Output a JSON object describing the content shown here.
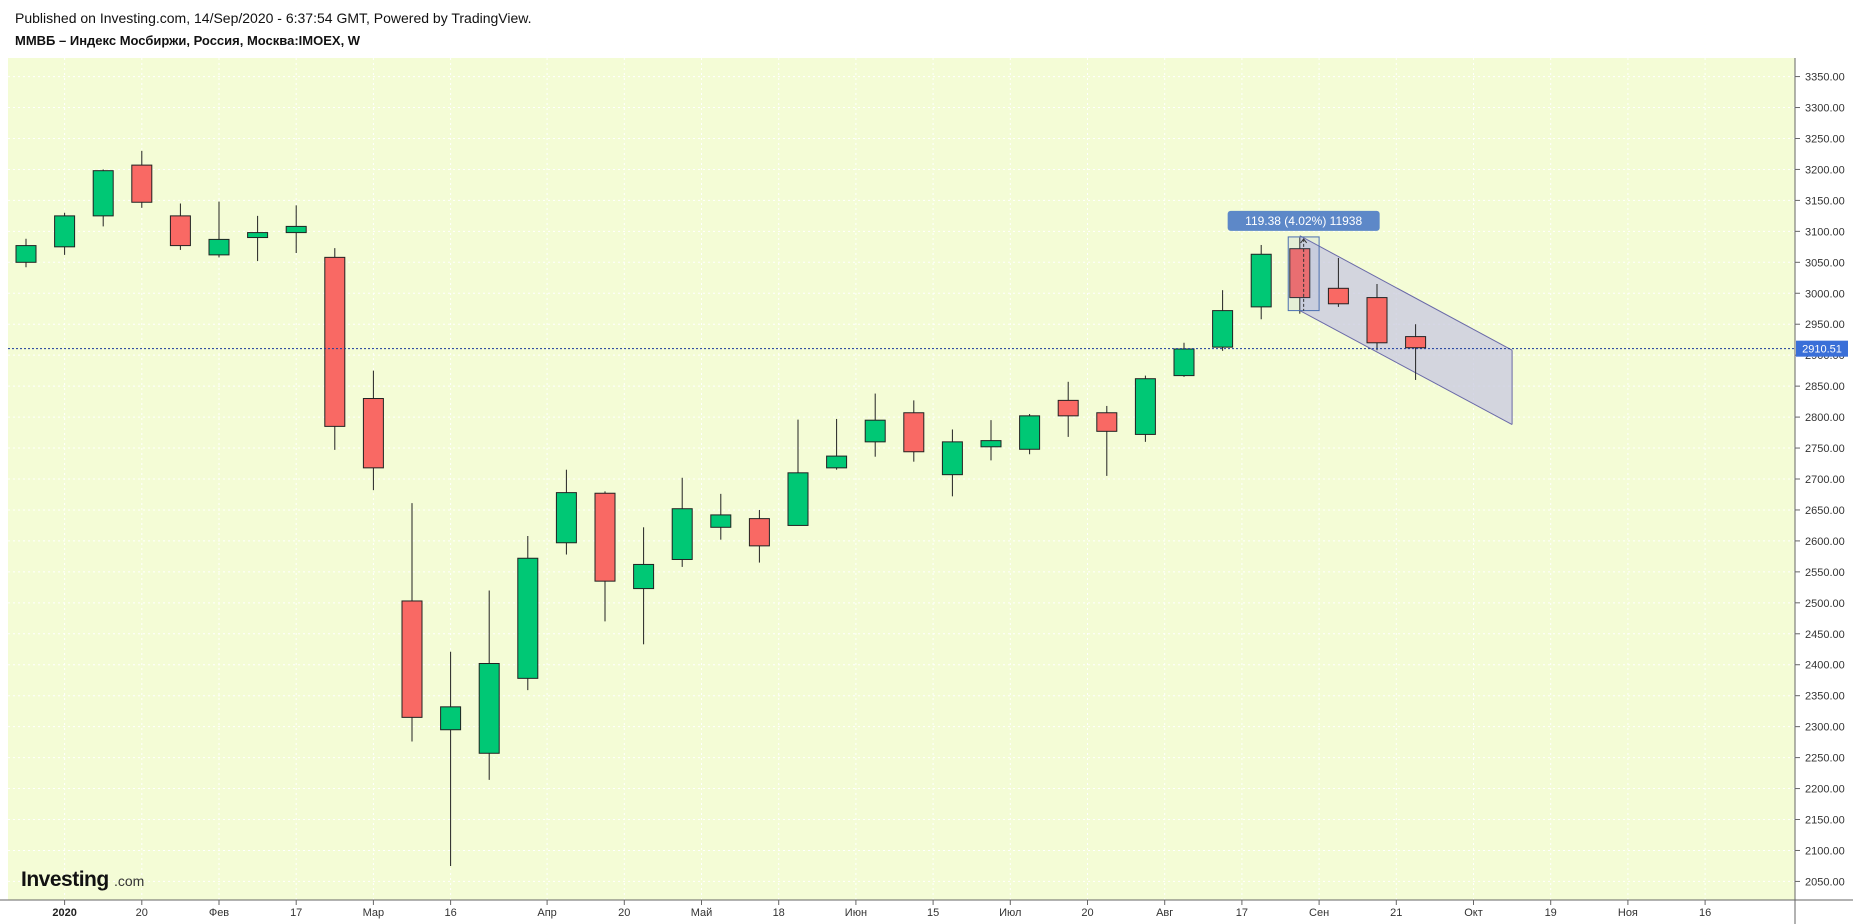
{
  "header": {
    "published_line": "Published on Investing.com, 14/Sep/2020 - 6:37:54 GMT, Powered by TradingView.",
    "symbol_line": "ММВБ – Индекс Мосбиржи, Россия, Москва:IMOEX, W"
  },
  "logo": {
    "main": "Investing",
    "suffix": ".com"
  },
  "colors": {
    "background": "#f4fcd6",
    "up": "#00c875",
    "down": "#f96964",
    "wick": "#222222",
    "price_line": "#1a3a9c",
    "price_label_bg": "#3a6fd8",
    "channel_fill": "#c8c8e0",
    "channel_stroke": "#6a6aa8",
    "measure_label_bg": "#5d88c8"
  },
  "price_label": "2910.51",
  "measure_label": "119.38 (4.02%) 11938",
  "chart_data": {
    "type": "candlestick",
    "title": "ММВБ – Индекс Мосбиржи, Россия, Москва:IMOEX, W",
    "ylim": [
      2020,
      3380
    ],
    "yticks": [
      2050,
      2100,
      2150,
      2200,
      2250,
      2300,
      2350,
      2400,
      2450,
      2500,
      2550,
      2600,
      2650,
      2700,
      2750,
      2800,
      2850,
      2900,
      2950,
      3000,
      3050,
      3100,
      3150,
      3200,
      3250,
      3300,
      3350
    ],
    "ytick_labels": [
      "2050.00",
      "2100.00",
      "2150.00",
      "2200.00",
      "2250.00",
      "2300.00",
      "2350.00",
      "2400.00",
      "2450.00",
      "2500.00",
      "2550.00",
      "2600.00",
      "2650.00",
      "2700.00",
      "2750.00",
      "2800.00",
      "2850.00",
      "2900.00",
      "2950.00",
      "3000.00",
      "3050.00",
      "3100.00",
      "3150.00",
      "3200.00",
      "3250.00",
      "3300.00",
      "3350.00"
    ],
    "xticks": [
      {
        "week": 1,
        "label": "2020",
        "bold": true
      },
      {
        "week": 3,
        "label": "20"
      },
      {
        "week": 5,
        "label": "Фев"
      },
      {
        "week": 7,
        "label": "17"
      },
      {
        "week": 9,
        "label": "Мар"
      },
      {
        "week": 11,
        "label": "16"
      },
      {
        "week": 13.5,
        "label": "Апр"
      },
      {
        "week": 15.5,
        "label": "20"
      },
      {
        "week": 17.5,
        "label": "Май"
      },
      {
        "week": 19.5,
        "label": "18"
      },
      {
        "week": 21.5,
        "label": "Июн"
      },
      {
        "week": 23.5,
        "label": "15"
      },
      {
        "week": 25.5,
        "label": "Июл"
      },
      {
        "week": 27.5,
        "label": "20"
      },
      {
        "week": 29.5,
        "label": "Авг"
      },
      {
        "week": 31.5,
        "label": "17"
      },
      {
        "week": 33.5,
        "label": "Сен"
      },
      {
        "week": 35.5,
        "label": "21"
      },
      {
        "week": 37.5,
        "label": "Окт"
      },
      {
        "week": 39.5,
        "label": "19"
      },
      {
        "week": 41.5,
        "label": "Ноя"
      },
      {
        "week": 43.5,
        "label": "16"
      }
    ],
    "candles": [
      {
        "open": 3050,
        "high": 3088,
        "low": 3042,
        "close": 3077
      },
      {
        "open": 3075,
        "high": 3130,
        "low": 3062,
        "close": 3125
      },
      {
        "open": 3125,
        "high": 3200,
        "low": 3108,
        "close": 3198
      },
      {
        "open": 3207,
        "high": 3230,
        "low": 3138,
        "close": 3147
      },
      {
        "open": 3125,
        "high": 3145,
        "low": 3070,
        "close": 3077
      },
      {
        "open": 3062,
        "high": 3148,
        "low": 3058,
        "close": 3087
      },
      {
        "open": 3090,
        "high": 3125,
        "low": 3052,
        "close": 3098
      },
      {
        "open": 3098,
        "high": 3142,
        "low": 3065,
        "close": 3108
      },
      {
        "open": 3058,
        "high": 3073,
        "low": 2747,
        "close": 2785
      },
      {
        "open": 2830,
        "high": 2875,
        "low": 2682,
        "close": 2718
      },
      {
        "open": 2503,
        "high": 2661,
        "low": 2276,
        "close": 2315
      },
      {
        "open": 2295,
        "high": 2421,
        "low": 2075,
        "close": 2332
      },
      {
        "open": 2257,
        "high": 2520,
        "low": 2214,
        "close": 2402
      },
      {
        "open": 2378,
        "high": 2608,
        "low": 2359,
        "close": 2572
      },
      {
        "open": 2597,
        "high": 2715,
        "low": 2578,
        "close": 2678
      },
      {
        "open": 2677,
        "high": 2680,
        "low": 2470,
        "close": 2535
      },
      {
        "open": 2523,
        "high": 2622,
        "low": 2433,
        "close": 2562
      },
      {
        "open": 2570,
        "high": 2702,
        "low": 2558,
        "close": 2652
      },
      {
        "open": 2622,
        "high": 2676,
        "low": 2602,
        "close": 2642
      },
      {
        "open": 2636,
        "high": 2650,
        "low": 2565,
        "close": 2592
      },
      {
        "open": 2625,
        "high": 2796,
        "low": 2625,
        "close": 2710
      },
      {
        "open": 2718,
        "high": 2797,
        "low": 2715,
        "close": 2737
      },
      {
        "open": 2760,
        "high": 2838,
        "low": 2736,
        "close": 2795
      },
      {
        "open": 2807,
        "high": 2827,
        "low": 2728,
        "close": 2744
      },
      {
        "open": 2707,
        "high": 2780,
        "low": 2672,
        "close": 2760
      },
      {
        "open": 2752,
        "high": 2795,
        "low": 2730,
        "close": 2762
      },
      {
        "open": 2748,
        "high": 2805,
        "low": 2740,
        "close": 2802
      },
      {
        "open": 2827,
        "high": 2857,
        "low": 2768,
        "close": 2802
      },
      {
        "open": 2807,
        "high": 2818,
        "low": 2705,
        "close": 2777
      },
      {
        "open": 2772,
        "high": 2867,
        "low": 2760,
        "close": 2862
      },
      {
        "open": 2867,
        "high": 2920,
        "low": 2865,
        "close": 2910
      },
      {
        "open": 2913,
        "high": 3005,
        "low": 2907,
        "close": 2972
      },
      {
        "open": 2978,
        "high": 3078,
        "low": 2958,
        "close": 3063
      },
      {
        "open": 3072,
        "high": 3090,
        "low": 2967,
        "close": 2993
      },
      {
        "open": 3008,
        "high": 3057,
        "low": 2978,
        "close": 2983
      },
      {
        "open": 2993,
        "high": 3015,
        "low": 2908,
        "close": 2920
      },
      {
        "open": 2930,
        "high": 2950,
        "low": 2860,
        "close": 2912
      }
    ],
    "current_price": 2910.51,
    "price_channel": {
      "top": {
        "from": {
          "week": 33,
          "price": 3093
        },
        "to": {
          "week": 38.5,
          "price": 2908
        }
      },
      "bottom": {
        "from": {
          "week": 33,
          "price": 2972
        },
        "to": {
          "week": 38.5,
          "price": 2788
        }
      }
    },
    "measure_tool": {
      "week_from": 32.7,
      "week_to": 33.5,
      "price_from": 2972,
      "price_to": 3091,
      "label": "119.38 (4.02%) 11938"
    }
  }
}
